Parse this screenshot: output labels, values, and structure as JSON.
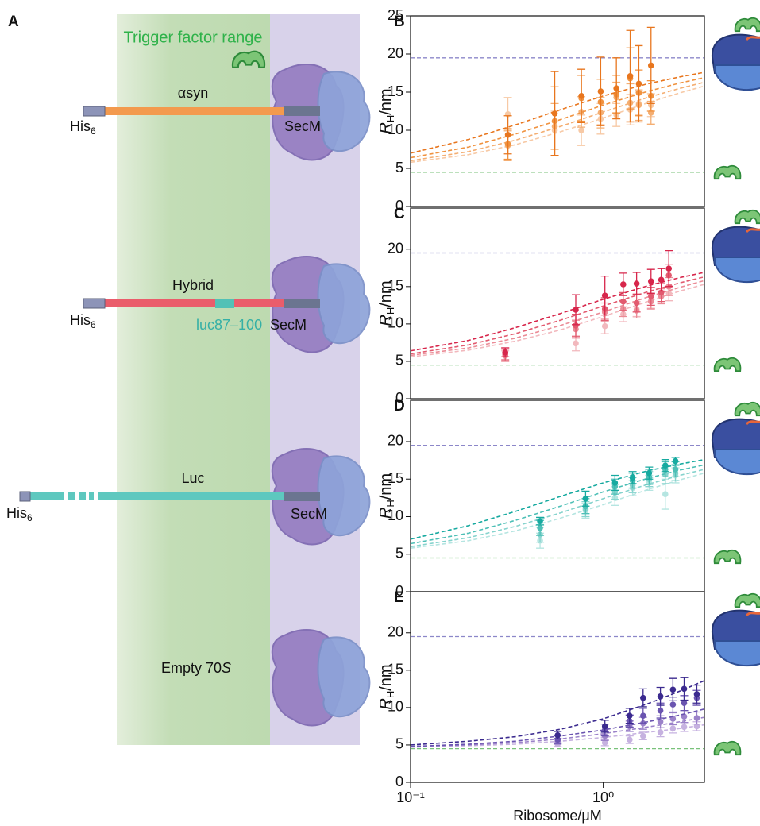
{
  "diagram": {
    "panel": "A",
    "range_label": "Trigger factor range",
    "constructs": [
      {
        "name": "αsyn",
        "tag": "His",
        "tag_sub": "6",
        "anchor": "SecM"
      },
      {
        "name": "Hybrid",
        "tag": "His",
        "tag_sub": "6",
        "anchor": "SecM",
        "insert": "luc87–100"
      },
      {
        "name": "Luc",
        "tag": "His",
        "tag_sub": "6",
        "anchor": "SecM"
      }
    ],
    "empty": {
      "text": "Empty 70",
      "italic": "S"
    }
  },
  "chart_data": [
    {
      "type": "scatter",
      "panel": "B",
      "xscale": "log",
      "xlim": [
        0.1,
        3.35
      ],
      "ylim": [
        0,
        25
      ],
      "yticks": [
        0,
        5,
        10,
        15,
        20,
        25
      ],
      "ylabel": {
        "symbol": "R",
        "sub": "H",
        "unit": "/nm"
      },
      "hlines": [
        {
          "value": 19.5,
          "color": "#8c87c9"
        },
        {
          "value": 4.5,
          "color": "#79c27a"
        }
      ],
      "x": [
        0.32,
        0.56,
        0.77,
        0.97,
        1.17,
        1.38,
        1.53,
        1.77
      ],
      "fit_x": [
        0.1,
        0.2,
        0.35,
        0.6,
        1,
        1.7,
        2.5,
        3.35
      ],
      "series": [
        {
          "color": "#e8761e",
          "values": [
            9.4,
            12.2,
            14.5,
            15.1,
            15.5,
            17.1,
            16.1,
            18.5
          ],
          "errors": [
            2.5,
            5.5,
            3.5,
            4.5,
            4,
            6,
            5,
            5
          ],
          "fit": [
            7.0,
            8.8,
            10.7,
            12.7,
            14.5,
            16.1,
            17.0,
            17.6
          ]
        },
        {
          "color": "#f0923f",
          "values": [
            8.2,
            11.2,
            14.2,
            13.7,
            14.7,
            16.8,
            14.9,
            14.5
          ],
          "errors": [
            2,
            4.5,
            3,
            3,
            2.5,
            4,
            3,
            2
          ],
          "fit": [
            6.4,
            7.8,
            9.5,
            11.4,
            13.3,
            15.1,
            16.2,
            16.9
          ]
        },
        {
          "color": "#f4ae72",
          "values": [
            8.0,
            10.5,
            12.4,
            12.3,
            14.3,
            13.6,
            13.3,
            12.3
          ],
          "errors": [
            2,
            3,
            2,
            2,
            2,
            2.5,
            2,
            1.5
          ],
          "fit": [
            6.0,
            7.2,
            8.7,
            10.5,
            12.4,
            14.3,
            15.5,
            16.3
          ]
        },
        {
          "color": "#f7c9a5",
          "values": [
            12.1,
            10.0,
            10.0,
            11.5,
            12.0,
            12.7,
            13.5,
            13.3
          ],
          "errors": [
            2.2,
            2.5,
            2,
            2,
            1.5,
            2,
            1.5,
            1.5
          ],
          "fit": [
            5.8,
            6.8,
            8.1,
            9.8,
            11.6,
            13.6,
            14.9,
            15.8
          ]
        }
      ]
    },
    {
      "type": "scatter",
      "panel": "C",
      "xscale": "log",
      "xlim": [
        0.1,
        3.35
      ],
      "ylim": [
        0,
        25.5
      ],
      "yticks": [
        0,
        5,
        10,
        15,
        20
      ],
      "ylabel": {
        "symbol": "R",
        "sub": "H",
        "unit": "/nm"
      },
      "hlines": [
        {
          "value": 19.5,
          "color": "#8c87c9"
        },
        {
          "value": 4.5,
          "color": "#79c27a"
        }
      ],
      "x": [
        0.31,
        0.72,
        1.02,
        1.27,
        1.49,
        1.77,
        2.0,
        2.19
      ],
      "fit_x": [
        0.1,
        0.2,
        0.35,
        0.6,
        1,
        1.7,
        2.5,
        3.35
      ],
      "series": [
        {
          "color": "#d7264b",
          "values": [
            6.2,
            11.9,
            13.8,
            15.3,
            15.4,
            15.7,
            15.9,
            17.4
          ],
          "errors": [
            0.6,
            2,
            2.6,
            1.5,
            1.5,
            1.6,
            1.5,
            2.4
          ],
          "fit": [
            6.4,
            7.8,
            9.5,
            11.4,
            13.3,
            15.1,
            16.2,
            16.9
          ]
        },
        {
          "color": "#e25a6f",
          "values": [
            6.0,
            9.8,
            12.0,
            13.0,
            12.8,
            13.7,
            14.2,
            16.5
          ],
          "errors": [
            0.8,
            1.5,
            1.5,
            1.2,
            1.2,
            1.2,
            1.2,
            1.5
          ],
          "fit": [
            6.0,
            7.2,
            8.7,
            10.5,
            12.4,
            14.3,
            15.5,
            16.3
          ]
        },
        {
          "color": "#eb8c97",
          "values": [
            5.8,
            9.3,
            11.6,
            12.0,
            11.8,
            13.0,
            13.7,
            15.0
          ],
          "errors": [
            0.8,
            1.2,
            1.2,
            1,
            1,
            1,
            1,
            1.2
          ],
          "fit": [
            5.8,
            6.8,
            8.1,
            9.8,
            11.6,
            13.6,
            14.9,
            15.8
          ]
        },
        {
          "color": "#f2b8bd",
          "values": [
            5.7,
            7.4,
            9.7,
            11.3,
            12.0,
            13.1,
            13.8,
            14.1
          ],
          "errors": [
            0.7,
            1,
            1,
            1,
            1,
            1,
            1,
            1
          ],
          "fit": [
            5.6,
            6.5,
            7.7,
            9.2,
            11.0,
            13.0,
            14.4,
            15.3
          ]
        }
      ]
    },
    {
      "type": "scatter",
      "panel": "D",
      "xscale": "log",
      "xlim": [
        0.1,
        3.35
      ],
      "ylim": [
        0,
        25.5
      ],
      "yticks": [
        0,
        5,
        10,
        15,
        20
      ],
      "ylabel": {
        "symbol": "R",
        "sub": "H",
        "unit": "/nm"
      },
      "hlines": [
        {
          "value": 19.5,
          "color": "#8c87c9"
        },
        {
          "value": 4.5,
          "color": "#79c27a"
        }
      ],
      "x": [
        0.47,
        0.81,
        1.15,
        1.42,
        1.73,
        2.1,
        2.37
      ],
      "fit_x": [
        0.1,
        0.2,
        0.35,
        0.6,
        1,
        1.7,
        2.5,
        3.35
      ],
      "series": [
        {
          "color": "#17aaa0",
          "values": [
            9.4,
            12.4,
            14.5,
            15.2,
            15.8,
            16.8,
            17.4
          ],
          "errors": [
            0.5,
            1,
            1,
            0.8,
            0.8,
            0.8,
            0.5
          ],
          "fit": [
            7.0,
            8.8,
            10.7,
            12.7,
            14.5,
            16.1,
            17.0,
            17.6
          ]
        },
        {
          "color": "#4dbfb6",
          "values": [
            8.5,
            11.4,
            14.0,
            14.8,
            15.3,
            16.3,
            16.3
          ],
          "errors": [
            1,
            1,
            1,
            1,
            1,
            1,
            1
          ],
          "fit": [
            6.4,
            7.8,
            9.5,
            11.4,
            13.3,
            15.1,
            16.2,
            16.9
          ]
        },
        {
          "color": "#85d3cd",
          "values": [
            7.6,
            11.0,
            13.3,
            14.2,
            15.0,
            15.6,
            15.8
          ],
          "errors": [
            1,
            1,
            1,
            1,
            1,
            1.2,
            1
          ],
          "fit": [
            6.0,
            7.2,
            8.7,
            10.5,
            12.4,
            14.3,
            15.5,
            16.3
          ]
        },
        {
          "color": "#b5e5e1",
          "values": [
            6.8,
            10.8,
            12.5,
            13.8,
            14.5,
            13.0,
            15.5
          ],
          "errors": [
            1,
            1,
            1,
            1,
            1,
            2,
            1
          ],
          "fit": [
            5.8,
            6.8,
            8.1,
            9.8,
            11.6,
            13.6,
            14.9,
            15.8
          ]
        }
      ]
    },
    {
      "type": "scatter",
      "panel": "E",
      "xscale": "log",
      "xlim": [
        0.1,
        3.35
      ],
      "ylim": [
        0,
        25.5
      ],
      "yticks": [
        0,
        5,
        10,
        15,
        20
      ],
      "xticks": [
        {
          "value": 0.1,
          "label": "10⁻¹"
        },
        {
          "value": 1,
          "label": "10⁰"
        }
      ],
      "xlabel": "Ribosome/μM",
      "ylabel": {
        "symbol": "R",
        "sub": "H",
        "unit": "/nm"
      },
      "hlines": [
        {
          "value": 19.5,
          "color": "#8c87c9"
        },
        {
          "value": 4.5,
          "color": "#79c27a"
        }
      ],
      "x": [
        0.58,
        1.02,
        1.37,
        1.61,
        1.98,
        2.3,
        2.63,
        3.06
      ],
      "fit_x": [
        0.1,
        0.2,
        0.35,
        0.6,
        1,
        1.7,
        2.5,
        3.35
      ],
      "series": [
        {
          "color": "#3b2a8f",
          "values": [
            6.3,
            7.5,
            8.9,
            11.3,
            11.5,
            12.4,
            12.5,
            11.8
          ],
          "errors": [
            0.5,
            0.8,
            1,
            1.2,
            1.2,
            1.5,
            1.5,
            1.2
          ],
          "fit": [
            5.0,
            5.5,
            6.1,
            7.1,
            8.5,
            10.5,
            12.2,
            13.6
          ]
        },
        {
          "color": "#6a54b0",
          "values": [
            5.7,
            7.0,
            8.2,
            8.9,
            9.6,
            10.4,
            10.6,
            11.3
          ],
          "errors": [
            0.5,
            0.8,
            0.8,
            1,
            1,
            1,
            1,
            1
          ],
          "fit": [
            4.8,
            5.1,
            5.5,
            6.2,
            7.0,
            8.1,
            9.0,
            9.8
          ]
        },
        {
          "color": "#9b82c9",
          "values": [
            5.5,
            6.2,
            7.5,
            7.9,
            8.1,
            8.5,
            8.8,
            8.6
          ],
          "errors": [
            0.4,
            0.6,
            0.7,
            0.8,
            0.8,
            0.8,
            0.8,
            0.8
          ],
          "fit": [
            4.8,
            5.0,
            5.3,
            5.8,
            6.5,
            7.4,
            8.1,
            8.7
          ]
        },
        {
          "color": "#c6b2e0",
          "values": [
            5.1,
            5.3,
            5.7,
            6.2,
            6.7,
            7.2,
            7.4,
            7.5
          ],
          "errors": [
            0.3,
            0.4,
            0.5,
            0.5,
            0.6,
            0.6,
            0.6,
            0.6
          ],
          "fit": [
            4.7,
            4.9,
            5.1,
            5.5,
            6.0,
            6.7,
            7.2,
            7.7
          ]
        }
      ]
    }
  ]
}
